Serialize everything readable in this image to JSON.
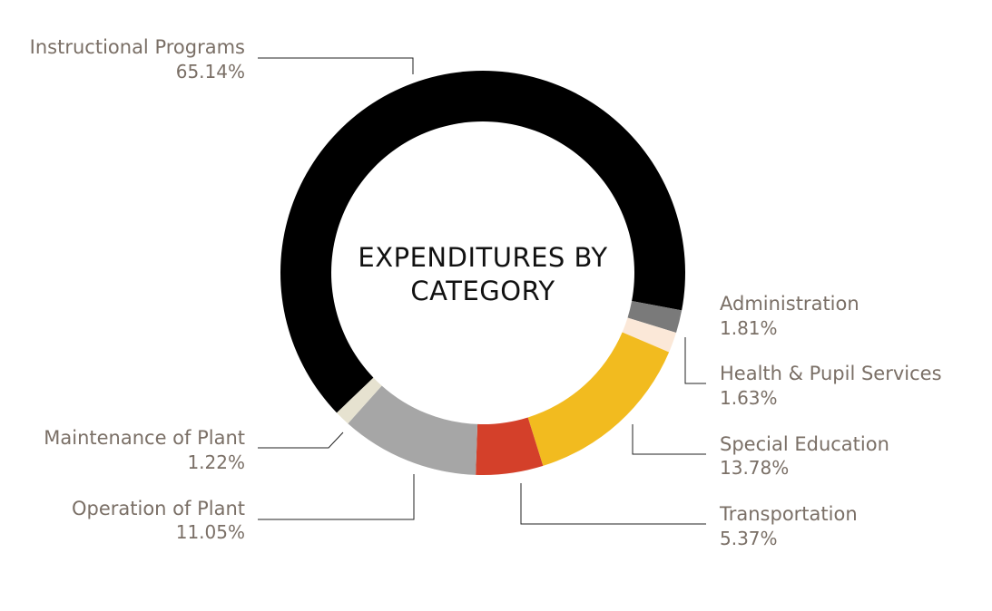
{
  "chart_data": {
    "type": "pie",
    "variant": "donut",
    "title_lines": [
      "EXPENDITURES BY",
      "CATEGORY"
    ],
    "slices": [
      {
        "name": "Instructional Programs",
        "value": 65.14,
        "label": "65.14%",
        "color": "#000000"
      },
      {
        "name": "Administration",
        "value": 1.81,
        "label": "1.81%",
        "color": "#7a7a7a"
      },
      {
        "name": "Health & Pupil Services",
        "value": 1.63,
        "label": "1.63%",
        "color": "#fbe8d8"
      },
      {
        "name": "Special Education",
        "value": 13.78,
        "label": "13.78%",
        "color": "#f2bb1f"
      },
      {
        "name": "Transportation",
        "value": 5.37,
        "label": "5.37%",
        "color": "#d4402a"
      },
      {
        "name": "Operation of Plant",
        "value": 11.05,
        "label": "11.05%",
        "color": "#a6a6a6"
      },
      {
        "name": "Maintenance of Plant",
        "value": 1.22,
        "label": "1.22%",
        "color": "#e6e2d0"
      }
    ]
  }
}
